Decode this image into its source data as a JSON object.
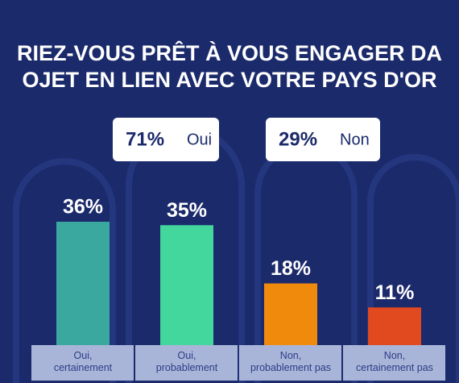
{
  "chart_data": {
    "type": "bar",
    "title": [
      "RIEZ-VOUS PRÊT À VOUS ENGAGER DA",
      "OJET EN LIEN AVEC VOTRE PAYS D'OR"
    ],
    "totals": {
      "categories": [
        "Oui",
        "Non"
      ],
      "values": [
        71,
        29
      ],
      "value_labels": [
        "71%",
        "29%"
      ]
    },
    "categories": [
      "Oui,\ncertainement",
      "Oui,\nprobablement",
      "Non,\nprobablement pas",
      "Non,\ncertainement pas"
    ],
    "values": [
      36,
      35,
      18,
      11
    ],
    "value_labels": [
      "36%",
      "35%",
      "18%",
      "11%"
    ],
    "colors": [
      "#3aa89f",
      "#43d69d",
      "#ef8a0c",
      "#e1491f"
    ]
  }
}
